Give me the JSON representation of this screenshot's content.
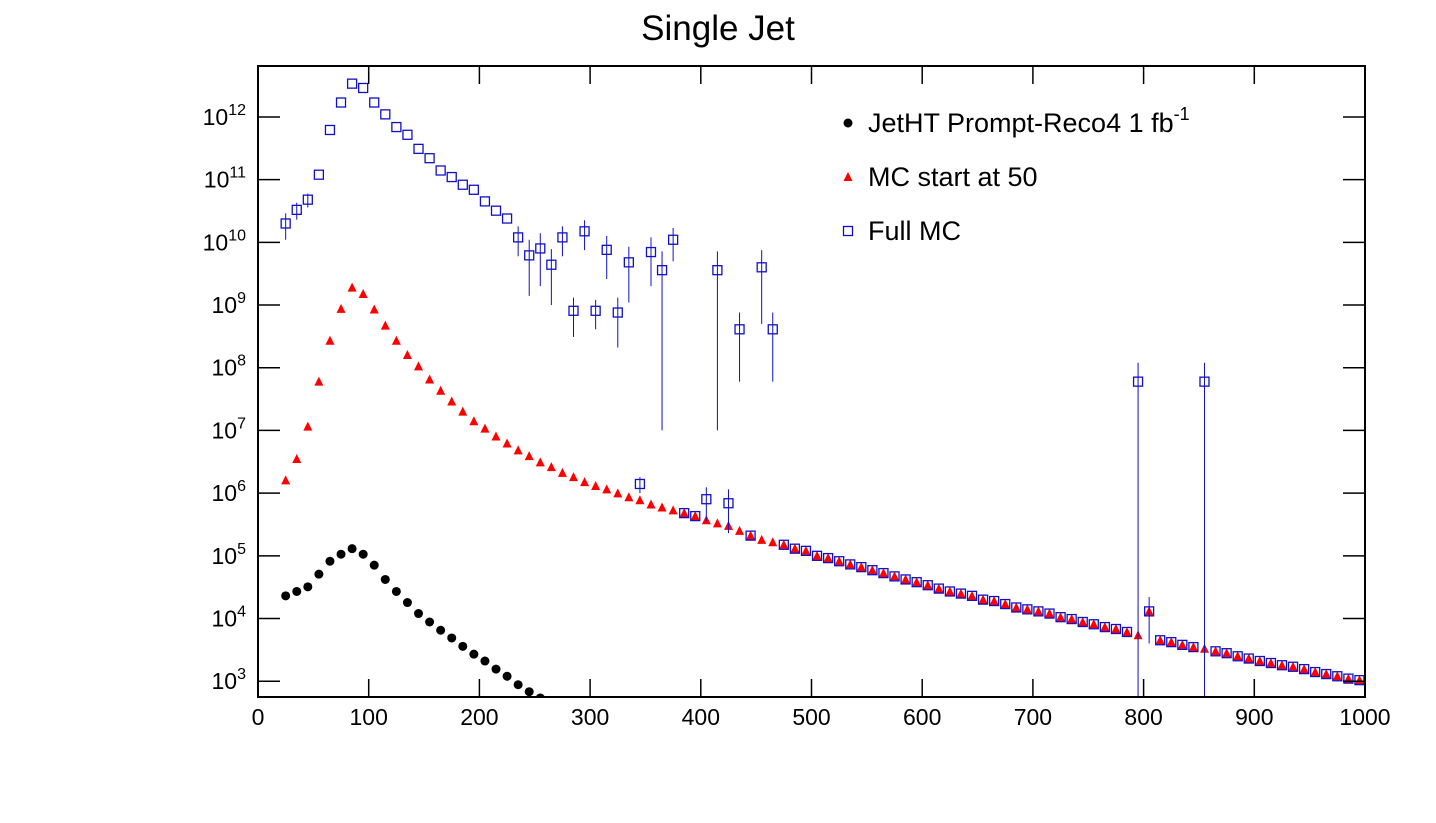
{
  "chart_data": {
    "type": "scatter",
    "title": "Single Jet",
    "log_y": true,
    "xlim": [
      0,
      1000
    ],
    "ylim": [
      560,
      6500000000000.0
    ],
    "xticks": [
      0,
      100,
      200,
      300,
      400,
      500,
      600,
      700,
      800,
      900,
      1000
    ],
    "yticks": [
      {
        "value": 1000.0,
        "label": "10",
        "exponent": "3"
      },
      {
        "value": 10000.0,
        "label": "10",
        "exponent": "4"
      },
      {
        "value": 100000.0,
        "label": "10",
        "exponent": "5"
      },
      {
        "value": 1000000.0,
        "label": "10",
        "exponent": "6"
      },
      {
        "value": 10000000.0,
        "label": "10",
        "exponent": "7"
      },
      {
        "value": 100000000.0,
        "label": "10",
        "exponent": "8"
      },
      {
        "value": 1000000000.0,
        "label": "10",
        "exponent": "9"
      },
      {
        "value": 10000000000.0,
        "label": "10",
        "exponent": "10"
      },
      {
        "value": 100000000000.0,
        "label": "10",
        "exponent": "11"
      },
      {
        "value": 1000000000000.0,
        "label": "10",
        "exponent": "12"
      }
    ],
    "x": [
      25,
      35,
      45,
      55,
      65,
      75,
      85,
      95,
      105,
      115,
      125,
      135,
      145,
      155,
      165,
      175,
      185,
      195,
      205,
      215,
      225,
      235,
      245,
      255,
      265,
      275,
      285,
      295,
      305,
      315,
      325,
      335,
      345,
      355,
      365,
      375,
      385,
      395,
      405,
      415,
      425,
      435,
      445,
      455,
      465,
      475,
      485,
      495,
      505,
      515,
      525,
      535,
      545,
      555,
      565,
      575,
      585,
      595,
      605,
      615,
      625,
      635,
      645,
      655,
      665,
      675,
      685,
      695,
      705,
      715,
      725,
      735,
      745,
      755,
      765,
      775,
      785,
      795,
      805,
      815,
      825,
      835,
      845,
      855,
      865,
      875,
      885,
      895,
      905,
      915,
      925,
      935,
      945,
      955,
      965,
      975,
      985,
      995
    ],
    "series": [
      {
        "name": "JetHT Prompt-Reco4 1 fb",
        "name_superscript": "-1",
        "color": "#000000",
        "marker": "circle",
        "values": [
          23000.0,
          27000.0,
          32000.0,
          51000.0,
          82000.0,
          106000.0,
          130000.0,
          106000.0,
          71000.0,
          42000.0,
          27000.0,
          18000.0,
          12000.0,
          8800.0,
          6500.0,
          4900.0,
          3600.0,
          2700.0,
          2100.0,
          1560.0,
          1200.0,
          880,
          680,
          540,
          null,
          null,
          null,
          null,
          null,
          null,
          null,
          null,
          null,
          null,
          null,
          null,
          null,
          null,
          null,
          null,
          null,
          null,
          null,
          null,
          null,
          null,
          null,
          null,
          null,
          null,
          null,
          null,
          null,
          null,
          null,
          null,
          null,
          null,
          null,
          null,
          null,
          null,
          null,
          null,
          null,
          null,
          null,
          null,
          null,
          null,
          null,
          null,
          null,
          null,
          null,
          null,
          null,
          null,
          null,
          null,
          null,
          null,
          null,
          null,
          null,
          null,
          null,
          null,
          null,
          null,
          null,
          null,
          null,
          null,
          null,
          null,
          null,
          null
        ]
      },
      {
        "name": "MC start at 50",
        "color": "#ff0000",
        "marker": "triangle",
        "values": [
          1600000.0,
          3500000.0,
          11500000.0,
          60000000.0,
          270000000.0,
          870000000.0,
          1900000000.0,
          1500000000.0,
          850000000.0,
          470000000.0,
          270000000.0,
          160000000.0,
          105000000.0,
          65000000.0,
          43000000.0,
          29000000.0,
          20000000.0,
          14000000.0,
          10700000.0,
          8000000.0,
          6200000.0,
          4800000.0,
          3900000.0,
          3100000.0,
          2600000.0,
          2100000.0,
          1800000.0,
          1500000.0,
          1300000.0,
          1150000.0,
          990000.0,
          860000.0,
          770000.0,
          660000.0,
          590000.0,
          530000.0,
          480000.0,
          430000.0,
          370000.0,
          330000.0,
          300000.0,
          250000.0,
          210000.0,
          180000.0,
          165000.0,
          150000.0,
          130000.0,
          120000.0,
          100000.0,
          92000.0,
          82000.0,
          73000.0,
          66000.0,
          59000.0,
          53000.0,
          47000.0,
          42000.0,
          38000.0,
          34000.0,
          30000.0,
          27000.0,
          25000.0,
          23000.0,
          20000.0,
          19000.0,
          17000.0,
          15000.0,
          14000.0,
          13000.0,
          12000.0,
          10500.0,
          9800.0,
          8800.0,
          8100.0,
          7300.0,
          6800.0,
          6100.0,
          5400.0,
          13000.0,
          4500.0,
          4200.0,
          3800.0,
          3500.0,
          3300.0,
          3000.0,
          2800.0,
          2500.0,
          2300.0,
          2100.0,
          1950.0,
          1800.0,
          1700.0,
          1560.0,
          1400.0,
          1300.0,
          1200.0,
          1100.0,
          1040.0
        ]
      },
      {
        "name": "Full MC",
        "color": "#1010c8",
        "marker": "square",
        "values": [
          20000000000.0,
          33000000000.0,
          48000000000.0,
          120000000000.0,
          620000000000.0,
          1700000000000.0,
          3400000000000.0,
          2900000000000.0,
          1700000000000.0,
          1100000000000.0,
          690000000000.0,
          520000000000.0,
          310000000000.0,
          220000000000.0,
          140000000000.0,
          110000000000.0,
          83000000000.0,
          69000000000.0,
          45000000000.0,
          32000000000.0,
          24000000000.0,
          12000000000.0,
          6200000000.0,
          8000000000.0,
          4400000000.0,
          12000000000.0,
          810000000.0,
          15000000000.0,
          810000000.0,
          7600000000.0,
          760000000.0,
          4800000000.0,
          1400000.0,
          7000000000.0,
          3600000000.0,
          11000000000.0,
          480000.0,
          430000.0,
          800000.0,
          3600000000.0,
          690000.0,
          410000000.0,
          210000.0,
          4000000000.0,
          410000000.0,
          150000.0,
          130000.0,
          120000.0,
          100000.0,
          92000.0,
          82000.0,
          73000.0,
          66000.0,
          59000.0,
          53000.0,
          47000.0,
          42000.0,
          38000.0,
          34000.0,
          30000.0,
          27000.0,
          25000.0,
          23000.0,
          20000.0,
          19000.0,
          17000.0,
          15000.0,
          14000.0,
          13000.0,
          12000.0,
          10500.0,
          9800.0,
          8800.0,
          8100.0,
          7300.0,
          6800.0,
          6100.0,
          60000000.0,
          13000.0,
          4500.0,
          4200.0,
          3800.0,
          3500.0,
          60000000.0,
          3000.0,
          2800.0,
          2500.0,
          2300.0,
          2100.0,
          1950.0,
          1800.0,
          1700.0,
          1560.0,
          1400.0,
          1300.0,
          1200.0,
          1100.0,
          1040.0
        ],
        "errors": [
          9000000000.0,
          10000000000.0,
          12000000000.0,
          null,
          null,
          null,
          null,
          null,
          null,
          null,
          null,
          null,
          null,
          null,
          null,
          null,
          null,
          null,
          null,
          null,
          null,
          6000000000.0,
          4800000000.0,
          6000000000.0,
          3400000000.0,
          6000000000.0,
          500000000.0,
          7500000000.0,
          400000000.0,
          5000000000.0,
          550000000.0,
          3700000000.0,
          400000.0,
          5000000000.0,
          3590000000.0,
          6000000000.0,
          null,
          null,
          440000.0,
          3590000000.0,
          460000.0,
          350000000.0,
          null,
          3500000000.0,
          350000000.0,
          null,
          null,
          null,
          null,
          null,
          null,
          null,
          null,
          null,
          null,
          null,
          null,
          null,
          null,
          null,
          null,
          null,
          null,
          null,
          null,
          null,
          null,
          null,
          null,
          null,
          null,
          null,
          null,
          null,
          null,
          null,
          null,
          60000000.0,
          9000.0,
          null,
          null,
          null,
          null,
          60000000.0,
          null,
          null,
          null,
          null,
          null,
          null,
          null,
          null,
          null,
          null,
          null,
          null,
          null,
          null
        ]
      }
    ],
    "legend": "top-right"
  }
}
